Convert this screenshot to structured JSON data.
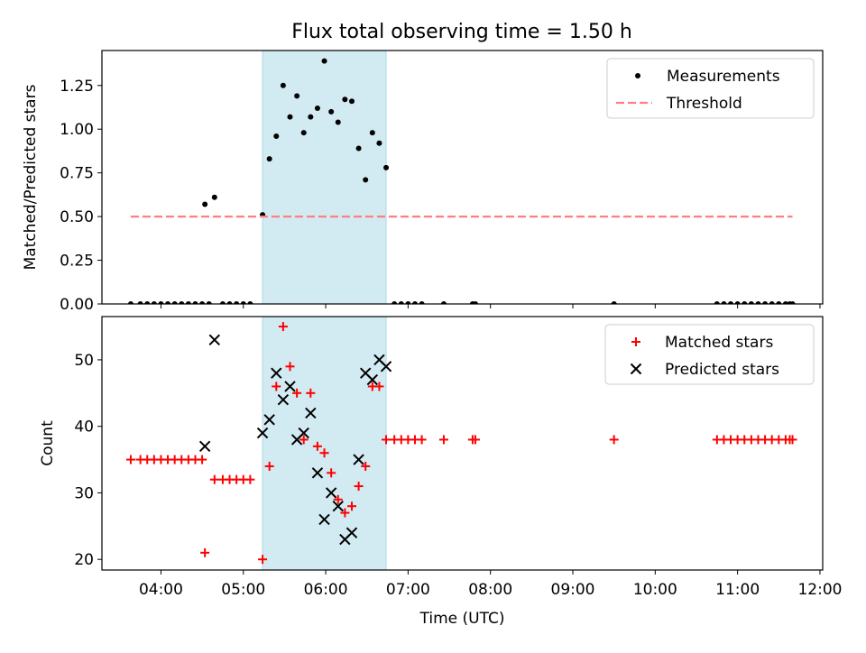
{
  "title": "Flux total observing time = 1.50 h",
  "colors": {
    "measurement": "#000000",
    "threshold": "#ff7f7f",
    "matched": "#ff0000",
    "predicted": "#000000",
    "highlight": "#add8e6"
  },
  "chart_data": [
    {
      "type": "scatter",
      "ylabel": "Matched/Predicted stars",
      "ylim": [
        0,
        1.45
      ],
      "yticks": [
        0.0,
        0.25,
        0.5,
        0.75,
        1.0,
        1.25
      ],
      "ytick_labels": [
        "0.00",
        "0.25",
        "0.50",
        "0.75",
        "1.00",
        "1.25"
      ],
      "xlim": [
        "03:17",
        "12:02"
      ],
      "highlight_span": [
        "05:14",
        "06:44"
      ],
      "legend": {
        "position": "upper right",
        "entries": [
          "Measurements",
          "Threshold"
        ]
      },
      "series": [
        {
          "name": "Measurements",
          "marker": "dot",
          "points": [
            [
              "03:38",
              0
            ],
            [
              "03:45",
              0
            ],
            [
              "03:50",
              0
            ],
            [
              "03:55",
              0
            ],
            [
              "04:00",
              0
            ],
            [
              "04:05",
              0
            ],
            [
              "04:10",
              0
            ],
            [
              "04:15",
              0
            ],
            [
              "04:20",
              0
            ],
            [
              "04:25",
              0
            ],
            [
              "04:30",
              0
            ],
            [
              "04:35",
              0
            ],
            [
              "04:32",
              0.57
            ],
            [
              "04:39",
              0.61
            ],
            [
              "04:45",
              0
            ],
            [
              "04:50",
              0
            ],
            [
              "04:55",
              0
            ],
            [
              "05:00",
              0
            ],
            [
              "05:05",
              0
            ],
            [
              "05:14",
              0.51
            ],
            [
              "05:19",
              0.83
            ],
            [
              "05:24",
              0.96
            ],
            [
              "05:29",
              1.25
            ],
            [
              "05:34",
              1.07
            ],
            [
              "05:39",
              1.19
            ],
            [
              "05:44",
              0.98
            ],
            [
              "05:49",
              1.07
            ],
            [
              "05:54",
              1.12
            ],
            [
              "05:59",
              1.39
            ],
            [
              "06:04",
              1.1
            ],
            [
              "06:09",
              1.04
            ],
            [
              "06:14",
              1.17
            ],
            [
              "06:19",
              1.16
            ],
            [
              "06:24",
              0.89
            ],
            [
              "06:29",
              0.71
            ],
            [
              "06:34",
              0.98
            ],
            [
              "06:39",
              0.92
            ],
            [
              "06:44",
              0.78
            ],
            [
              "06:50",
              0
            ],
            [
              "06:55",
              0
            ],
            [
              "07:00",
              0
            ],
            [
              "07:05",
              0
            ],
            [
              "07:10",
              0
            ],
            [
              "07:26",
              0
            ],
            [
              "07:47",
              0
            ],
            [
              "07:49",
              0
            ],
            [
              "09:30",
              0
            ],
            [
              "10:45",
              0
            ],
            [
              "10:50",
              0
            ],
            [
              "10:55",
              0
            ],
            [
              "11:00",
              0
            ],
            [
              "11:05",
              0
            ],
            [
              "11:10",
              0
            ],
            [
              "11:15",
              0
            ],
            [
              "11:20",
              0
            ],
            [
              "11:25",
              0
            ],
            [
              "11:30",
              0
            ],
            [
              "11:35",
              0
            ],
            [
              "11:38",
              0
            ],
            [
              "11:40",
              0
            ]
          ]
        },
        {
          "name": "Threshold",
          "line": "dashed",
          "points": [
            [
              "03:38",
              0.5
            ],
            [
              "11:40",
              0.5
            ]
          ]
        }
      ]
    },
    {
      "type": "scatter",
      "xlabel": "Time (UTC)",
      "ylabel": "Count",
      "ylim": [
        18.4,
        56.5
      ],
      "yticks": [
        20,
        30,
        40,
        50
      ],
      "ytick_labels": [
        "20",
        "30",
        "40",
        "50"
      ],
      "xlim": [
        "03:17",
        "12:02"
      ],
      "xticks": [
        "04:00",
        "05:00",
        "06:00",
        "07:00",
        "08:00",
        "09:00",
        "10:00",
        "11:00",
        "12:00"
      ],
      "highlight_span": [
        "05:14",
        "06:44"
      ],
      "legend": {
        "position": "upper right",
        "entries": [
          "Matched stars",
          "Predicted stars"
        ]
      },
      "series": [
        {
          "name": "Matched stars",
          "marker": "plus",
          "points": [
            [
              "03:38",
              35
            ],
            [
              "03:45",
              35
            ],
            [
              "03:50",
              35
            ],
            [
              "03:55",
              35
            ],
            [
              "04:00",
              35
            ],
            [
              "04:05",
              35
            ],
            [
              "04:10",
              35
            ],
            [
              "04:15",
              35
            ],
            [
              "04:20",
              35
            ],
            [
              "04:25",
              35
            ],
            [
              "04:30",
              35
            ],
            [
              "04:32",
              21
            ],
            [
              "04:39",
              32
            ],
            [
              "04:45",
              32
            ],
            [
              "04:50",
              32
            ],
            [
              "04:55",
              32
            ],
            [
              "05:00",
              32
            ],
            [
              "05:05",
              32
            ],
            [
              "05:14",
              20
            ],
            [
              "05:19",
              34
            ],
            [
              "05:24",
              46
            ],
            [
              "05:29",
              55
            ],
            [
              "05:34",
              49
            ],
            [
              "05:39",
              45
            ],
            [
              "05:44",
              38
            ],
            [
              "05:49",
              45
            ],
            [
              "05:54",
              37
            ],
            [
              "05:59",
              36
            ],
            [
              "06:04",
              33
            ],
            [
              "06:09",
              29
            ],
            [
              "06:14",
              27
            ],
            [
              "06:19",
              28
            ],
            [
              "06:24",
              31
            ],
            [
              "06:29",
              34
            ],
            [
              "06:34",
              46
            ],
            [
              "06:39",
              46
            ],
            [
              "06:44",
              38
            ],
            [
              "06:50",
              38
            ],
            [
              "06:55",
              38
            ],
            [
              "07:00",
              38
            ],
            [
              "07:05",
              38
            ],
            [
              "07:10",
              38
            ],
            [
              "07:26",
              38
            ],
            [
              "07:47",
              38
            ],
            [
              "07:49",
              38
            ],
            [
              "09:30",
              38
            ],
            [
              "10:45",
              38
            ],
            [
              "10:50",
              38
            ],
            [
              "10:55",
              38
            ],
            [
              "11:00",
              38
            ],
            [
              "11:05",
              38
            ],
            [
              "11:10",
              38
            ],
            [
              "11:15",
              38
            ],
            [
              "11:20",
              38
            ],
            [
              "11:25",
              38
            ],
            [
              "11:30",
              38
            ],
            [
              "11:35",
              38
            ],
            [
              "11:38",
              38
            ],
            [
              "11:40",
              38
            ]
          ]
        },
        {
          "name": "Predicted stars",
          "marker": "x",
          "points": [
            [
              "04:32",
              37
            ],
            [
              "04:39",
              53
            ],
            [
              "05:14",
              39
            ],
            [
              "05:19",
              41
            ],
            [
              "05:24",
              48
            ],
            [
              "05:29",
              44
            ],
            [
              "05:34",
              46
            ],
            [
              "05:39",
              38
            ],
            [
              "05:44",
              39
            ],
            [
              "05:49",
              42
            ],
            [
              "05:54",
              33
            ],
            [
              "05:59",
              26
            ],
            [
              "06:04",
              30
            ],
            [
              "06:09",
              28
            ],
            [
              "06:14",
              23
            ],
            [
              "06:19",
              24
            ],
            [
              "06:24",
              35
            ],
            [
              "06:29",
              48
            ],
            [
              "06:34",
              47
            ],
            [
              "06:39",
              50
            ],
            [
              "06:44",
              49
            ]
          ]
        }
      ]
    }
  ]
}
